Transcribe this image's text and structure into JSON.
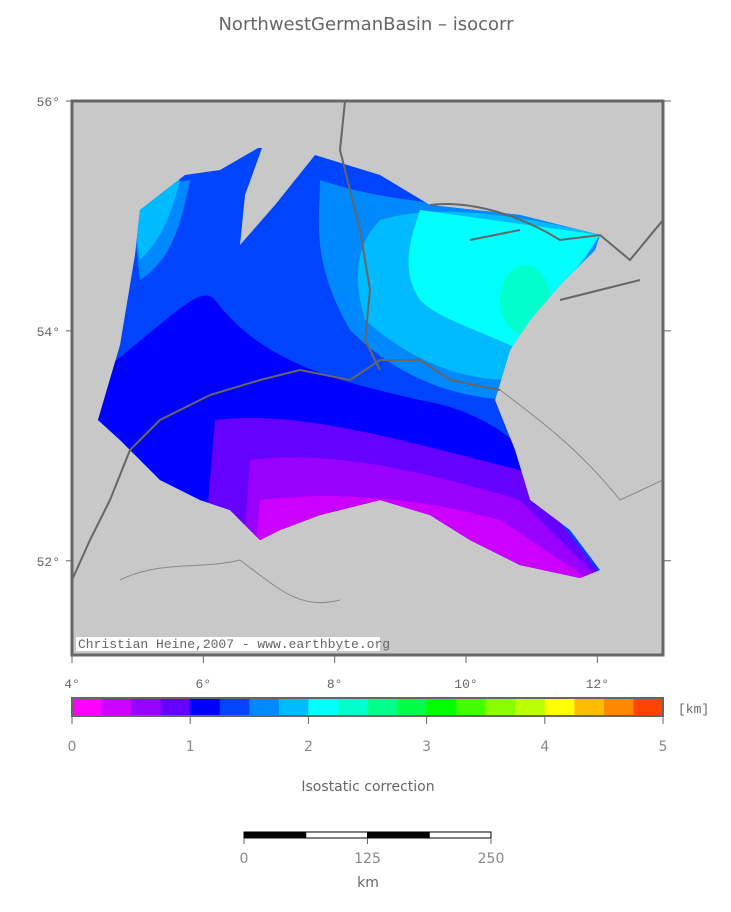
{
  "title": "NorthwestGermanBasin – isocorr",
  "map": {
    "lat_range": [
      51.18,
      56
    ],
    "lon_range": [
      4,
      13
    ],
    "lat_ticks": [
      {
        "value": 56,
        "label": "56°"
      },
      {
        "value": 54,
        "label": "54°"
      },
      {
        "value": 52,
        "label": "52°"
      }
    ],
    "lon_ticks": [
      {
        "value": 4,
        "label": "4°"
      },
      {
        "value": 6,
        "label": "6°"
      },
      {
        "value": 8,
        "label": "8°"
      },
      {
        "value": 10,
        "label": "10°"
      },
      {
        "value": 12,
        "label": "12°"
      }
    ],
    "credit": "Christian Heine,2007 - www.earthbyte.org"
  },
  "colorbar": {
    "range": [
      0,
      5
    ],
    "ticks": [
      0,
      1,
      2,
      3,
      4,
      5
    ],
    "unit": "[km]",
    "label": "Isostatic correction",
    "colors": [
      "#ff00ff",
      "#cc00ff",
      "#9900ff",
      "#6600ff",
      "#0000ff",
      "#0044ff",
      "#0088ff",
      "#00bbff",
      "#00ffff",
      "#00ffcc",
      "#00ff88",
      "#00ff44",
      "#00ff00",
      "#44ff00",
      "#88ff00",
      "#bbff00",
      "#ffff00",
      "#ffbb00",
      "#ff8800",
      "#ff4400"
    ]
  },
  "scale_bar": {
    "range": [
      0,
      250
    ],
    "ticks": [
      0,
      125,
      250
    ],
    "unit": "km"
  }
}
